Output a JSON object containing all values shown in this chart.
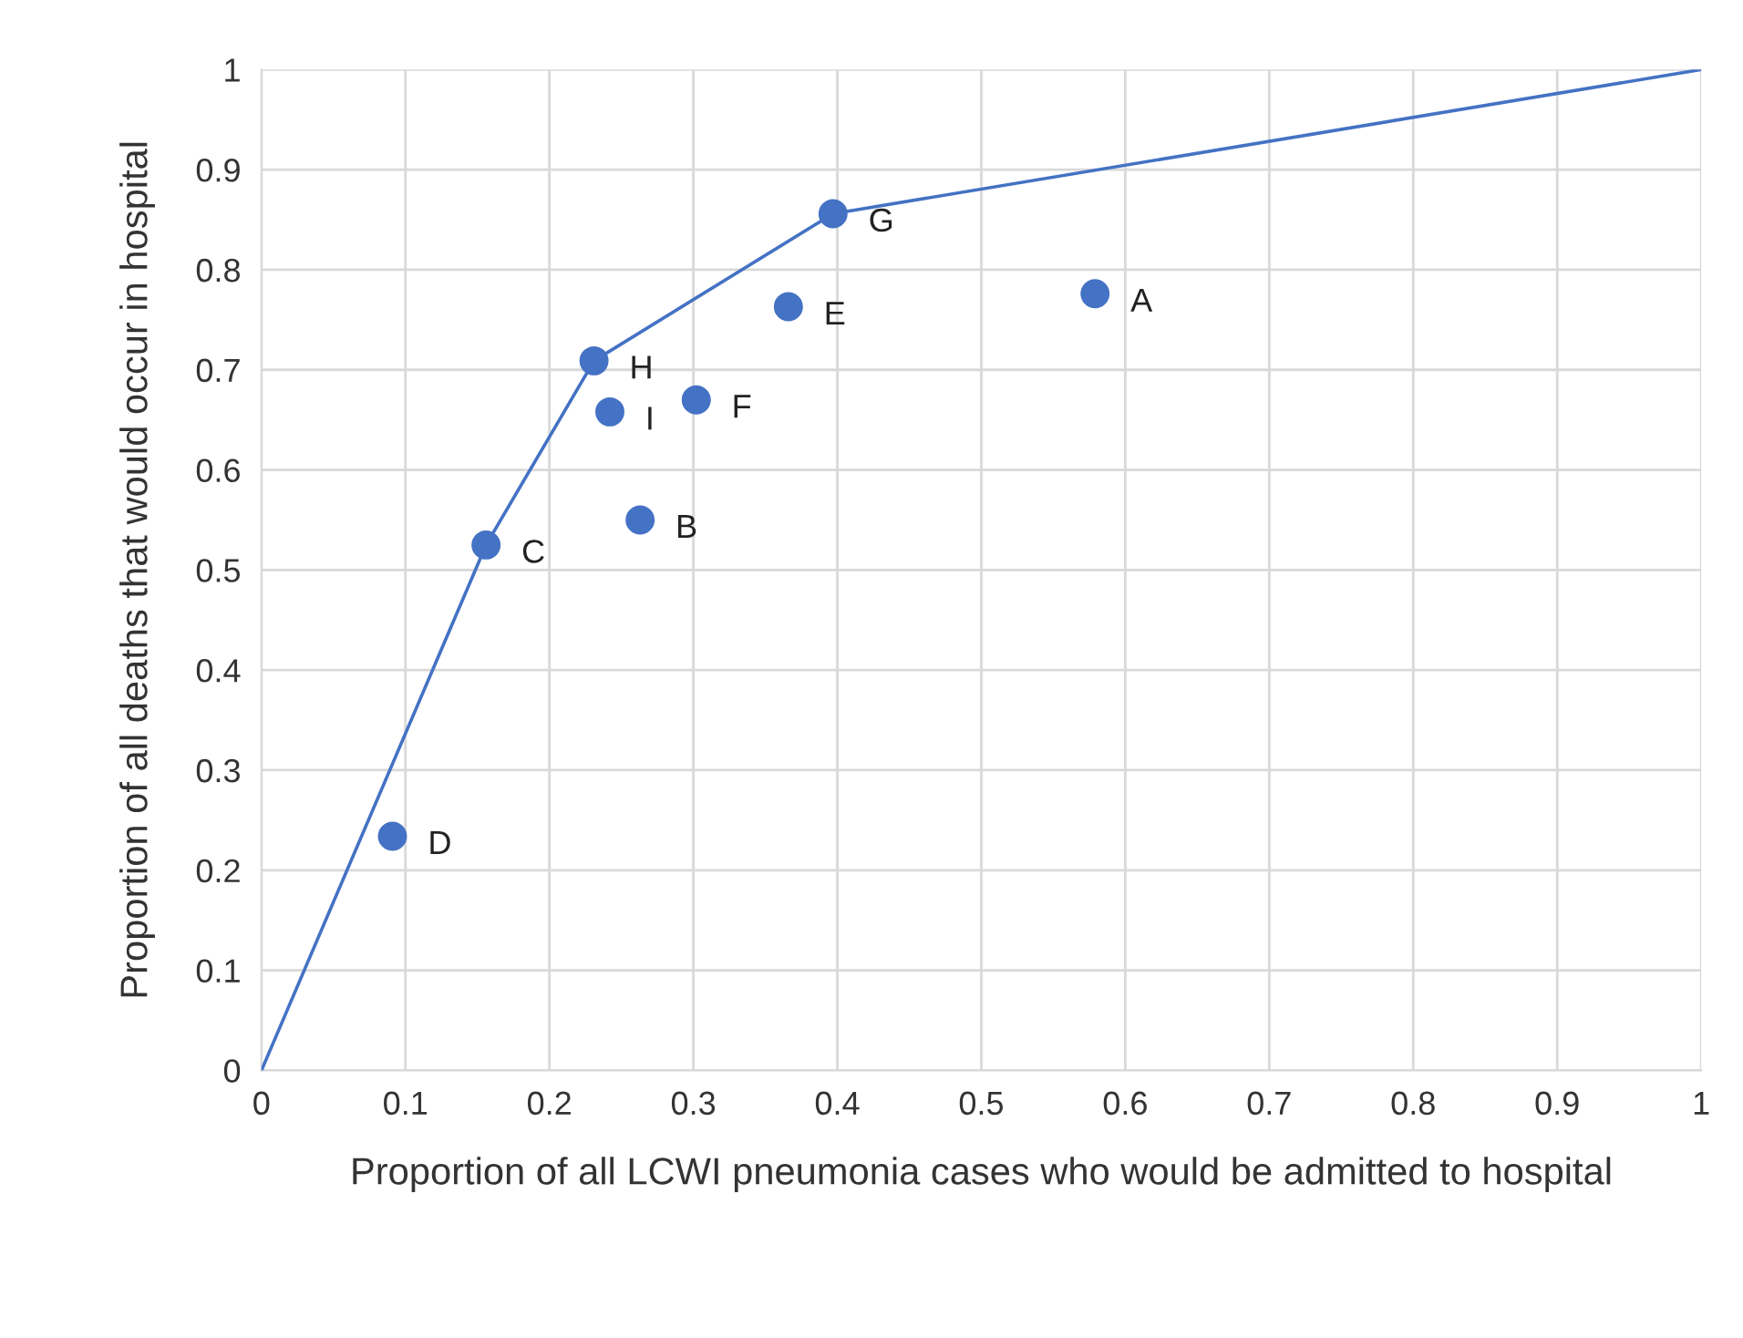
{
  "chart_data": {
    "type": "scatter",
    "xlabel": "Proportion of all LCWI pneumonia cases who would be admitted to hospital",
    "ylabel": "Proportion of all deaths that would occur in hospital",
    "xlim": [
      0,
      1
    ],
    "ylim": [
      0,
      1
    ],
    "xticks": [
      0,
      0.1,
      0.2,
      0.3,
      0.4,
      0.5,
      0.6,
      0.7,
      0.8,
      0.9,
      1
    ],
    "yticks": [
      0,
      0.1,
      0.2,
      0.3,
      0.4,
      0.5,
      0.6,
      0.7,
      0.8,
      0.9,
      1
    ],
    "grid": true,
    "series": [
      {
        "type": "line",
        "color": "#4472c4",
        "marker": "none",
        "line_style": "solid",
        "x": [
          0,
          0.156,
          0.231,
          0.397,
          1
        ],
        "values": [
          0,
          0.525,
          0.709,
          0.856,
          1
        ]
      },
      {
        "color": "#4472c4",
        "marker": "circle",
        "x": [
          0.579,
          0.263,
          0.156,
          0.091,
          0.366,
          0.302,
          0.397,
          0.231,
          0.242
        ],
        "values": [
          0.776,
          0.55,
          0.525,
          0.234,
          0.763,
          0.67,
          0.856,
          0.709,
          0.658
        ]
      }
    ],
    "annotations": [
      {
        "text": "A",
        "x": 0.579,
        "y": 0.776
      },
      {
        "text": "B",
        "x": 0.263,
        "y": 0.55
      },
      {
        "text": "C",
        "x": 0.156,
        "y": 0.525
      },
      {
        "text": "D",
        "x": 0.091,
        "y": 0.234
      },
      {
        "text": "E",
        "x": 0.366,
        "y": 0.763
      },
      {
        "text": "F",
        "x": 0.302,
        "y": 0.67
      },
      {
        "text": "G",
        "x": 0.397,
        "y": 0.856
      },
      {
        "text": "H",
        "x": 0.231,
        "y": 0.709
      },
      {
        "text": "I",
        "x": 0.242,
        "y": 0.658
      }
    ]
  }
}
